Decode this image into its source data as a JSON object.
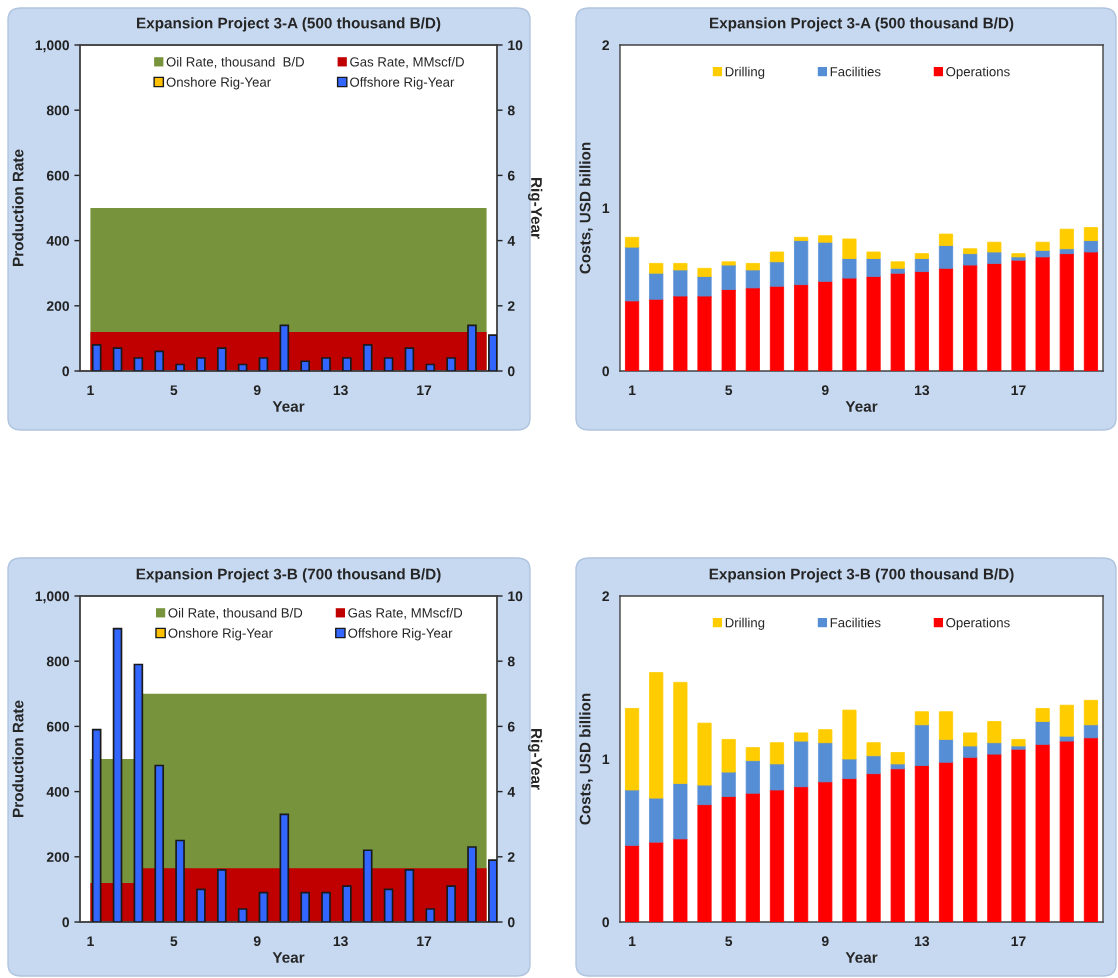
{
  "chart_data": [
    {
      "type": "bar",
      "title": "Expansion Project 3-A (500 thousand B/D)",
      "xlabel": "Year",
      "ylabel": "Production Rate",
      "y2label": "Rig-Year",
      "categories": [
        "1",
        null,
        null,
        null,
        "5",
        null,
        null,
        null,
        "9",
        null,
        null,
        null,
        "13",
        null,
        null,
        null,
        "17",
        null,
        null,
        null
      ],
      "series": [
        {
          "name": "Oil Rate, thousand  B/D",
          "type": "area",
          "color": "#77933c",
          "values": [
            500,
            500,
            500,
            500,
            500,
            500,
            500,
            500,
            500,
            500,
            500,
            500,
            500,
            500,
            500,
            500,
            500,
            500,
            500,
            500
          ]
        },
        {
          "name": "Gas Rate, MMscf/D",
          "type": "area",
          "color": "#c00000",
          "values": [
            120,
            120,
            120,
            120,
            120,
            120,
            120,
            120,
            120,
            120,
            120,
            120,
            120,
            120,
            120,
            120,
            120,
            120,
            120,
            120
          ]
        },
        {
          "name": "Onshore Rig-Year",
          "type": "bar",
          "axis": "y2",
          "color": "#ffc000",
          "values": [
            0,
            0,
            0,
            0,
            0,
            0,
            0,
            0,
            0,
            0,
            0,
            0,
            0,
            0,
            0,
            0,
            0,
            0,
            0,
            0
          ]
        },
        {
          "name": "Offshore Rig-Year",
          "type": "bar",
          "axis": "y2",
          "color": "#3366ff",
          "values": [
            0.8,
            0.7,
            0.4,
            0.6,
            0.2,
            0.4,
            0.7,
            0.2,
            0.4,
            1.4,
            0.3,
            0.4,
            0.4,
            0.8,
            0.4,
            0.7,
            0.2,
            0.4,
            1.4,
            1.1
          ]
        }
      ],
      "ylim": [
        0,
        1000
      ],
      "yticks": [
        0,
        200,
        400,
        600,
        800,
        {
          "value": 1000,
          "label": "1,000"
        }
      ],
      "y2lim": [
        0,
        10
      ],
      "y2ticks": [
        0,
        2,
        4,
        6,
        8,
        10
      ],
      "legend": "top"
    },
    {
      "type": "bar",
      "title": "Expansion Project 3-A (500 thousand B/D)",
      "xlabel": "Year",
      "ylabel": "Costs, USD billion",
      "stacked": true,
      "categories": [
        "1",
        null,
        null,
        null,
        "5",
        null,
        null,
        null,
        "9",
        null,
        null,
        null,
        "13",
        null,
        null,
        null,
        "17",
        null,
        null,
        null
      ],
      "series": [
        {
          "name": "Operations",
          "color": "#ff0000",
          "values": [
            0.43,
            0.44,
            0.46,
            0.46,
            0.5,
            0.51,
            0.52,
            0.53,
            0.55,
            0.57,
            0.58,
            0.6,
            0.61,
            0.63,
            0.65,
            0.66,
            0.68,
            0.7,
            0.72,
            0.73
          ]
        },
        {
          "name": "Facilities",
          "color": "#558ed5",
          "values": [
            0.33,
            0.16,
            0.16,
            0.12,
            0.15,
            0.11,
            0.15,
            0.27,
            0.24,
            0.12,
            0.11,
            0.03,
            0.08,
            0.14,
            0.07,
            0.07,
            0.02,
            0.04,
            0.03,
            0.07
          ]
        },
        {
          "name": "Drilling",
          "color": "#ffcc00",
          "values": [
            0.06,
            0.06,
            0.04,
            0.05,
            0.02,
            0.04,
            0.06,
            0.02,
            0.04,
            0.12,
            0.04,
            0.04,
            0.03,
            0.07,
            0.03,
            0.06,
            0.02,
            0.05,
            0.12,
            0.08
          ]
        }
      ],
      "ylim": [
        0,
        2
      ],
      "yticks": [
        0,
        1,
        2
      ],
      "legend": "top"
    },
    {
      "type": "bar",
      "title": "Expansion Project 3-B (700 thousand B/D)",
      "xlabel": "Year",
      "ylabel": "Production Rate",
      "y2label": "Rig-Year",
      "categories": [
        "1",
        null,
        null,
        null,
        "5",
        null,
        null,
        null,
        "9",
        null,
        null,
        null,
        "13",
        null,
        null,
        null,
        "17",
        null,
        null,
        null
      ],
      "series": [
        {
          "name": "Oil Rate, thousand B/D",
          "type": "area",
          "color": "#77933c",
          "values": [
            500,
            500,
            500,
            700,
            700,
            700,
            700,
            700,
            700,
            700,
            700,
            700,
            700,
            700,
            700,
            700,
            700,
            700,
            700,
            700
          ]
        },
        {
          "name": "Gas Rate, MMscf/D",
          "type": "area",
          "color": "#c00000",
          "values": [
            120,
            120,
            120,
            165,
            165,
            165,
            165,
            165,
            165,
            165,
            165,
            165,
            165,
            165,
            165,
            165,
            165,
            165,
            165,
            165
          ]
        },
        {
          "name": "Onshore Rig-Year",
          "type": "bar",
          "axis": "y2",
          "color": "#ffc000",
          "values": [
            0,
            0,
            0,
            0,
            0,
            0,
            0,
            0,
            0,
            0,
            0,
            0,
            0,
            0,
            0,
            0,
            0,
            0,
            0,
            0
          ]
        },
        {
          "name": "Offshore Rig-Year",
          "type": "bar",
          "axis": "y2",
          "color": "#3366ff",
          "values": [
            5.9,
            9.0,
            7.9,
            4.8,
            2.5,
            1.0,
            1.6,
            0.4,
            0.9,
            3.3,
            0.9,
            0.9,
            1.1,
            2.2,
            1.0,
            1.6,
            0.4,
            1.1,
            2.3,
            1.9
          ]
        }
      ],
      "ylim": [
        0,
        1000
      ],
      "yticks": [
        0,
        200,
        400,
        600,
        800,
        {
          "value": 1000,
          "label": "1,000"
        }
      ],
      "y2lim": [
        0,
        10
      ],
      "y2ticks": [
        0,
        2,
        4,
        6,
        8,
        10
      ],
      "legend": "top"
    },
    {
      "type": "bar",
      "title": "Expansion Project 3-B (700 thousand B/D)",
      "xlabel": "Year",
      "ylabel": "Costs, USD billion",
      "stacked": true,
      "categories": [
        "1",
        null,
        null,
        null,
        "5",
        null,
        null,
        null,
        "9",
        null,
        null,
        null,
        "13",
        null,
        null,
        null,
        "17",
        null,
        null,
        null
      ],
      "series": [
        {
          "name": "Operations",
          "color": "#ff0000",
          "values": [
            0.47,
            0.49,
            0.51,
            0.72,
            0.77,
            0.79,
            0.81,
            0.83,
            0.86,
            0.88,
            0.91,
            0.94,
            0.96,
            0.98,
            1.01,
            1.03,
            1.06,
            1.09,
            1.11,
            1.13
          ]
        },
        {
          "name": "Facilities",
          "color": "#558ed5",
          "values": [
            0.34,
            0.27,
            0.34,
            0.12,
            0.15,
            0.2,
            0.16,
            0.28,
            0.24,
            0.12,
            0.11,
            0.03,
            0.25,
            0.14,
            0.07,
            0.07,
            0.02,
            0.14,
            0.03,
            0.08
          ]
        },
        {
          "name": "Drilling",
          "color": "#ffcc00",
          "values": [
            0.5,
            0.77,
            0.62,
            0.38,
            0.2,
            0.08,
            0.13,
            0.05,
            0.08,
            0.3,
            0.08,
            0.07,
            0.08,
            0.17,
            0.08,
            0.13,
            0.04,
            0.08,
            0.19,
            0.15
          ]
        }
      ],
      "ylim": [
        0,
        2
      ],
      "yticks": [
        0,
        1,
        2
      ],
      "legend": "top"
    }
  ]
}
